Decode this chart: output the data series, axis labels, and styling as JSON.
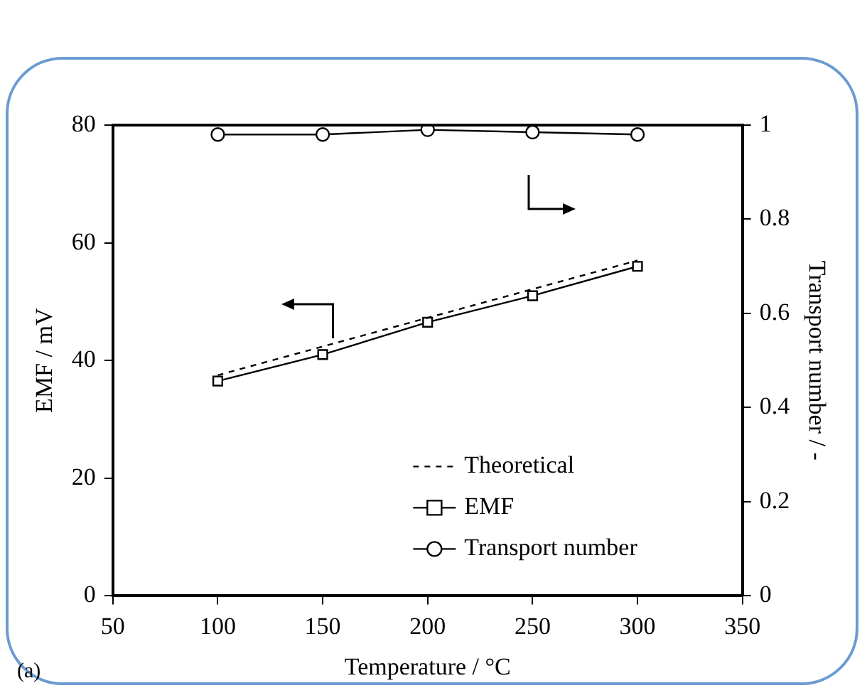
{
  "chart_data": {
    "type": "line",
    "xlabel": "Temperature / °C",
    "ylabel": "EMF / mV",
    "y2label": "Transport number / -",
    "annotations": [
      "(a)"
    ],
    "xlim": [
      50,
      350
    ],
    "xticks": [
      50,
      100,
      150,
      200,
      250,
      300,
      350
    ],
    "ylim": [
      0,
      80
    ],
    "yticks": [
      0,
      20,
      40,
      60,
      80
    ],
    "y2lim": [
      0,
      1
    ],
    "y2ticks": [
      0,
      0.2,
      0.4,
      0.6,
      0.8,
      1
    ],
    "grid": false,
    "legend": "bottom right",
    "series": [
      {
        "name": "Theoretical",
        "color": "#000000",
        "x": [
          100,
          300
        ],
        "values": [
          37.5,
          57
        ],
        "line_style": "dashed",
        "marker": "none"
      },
      {
        "name": "EMF",
        "color": "#000000",
        "x": [
          100,
          150,
          200,
          250,
          300
        ],
        "values": [
          36.5,
          41,
          46.5,
          51,
          56
        ],
        "line_style": "solid",
        "marker": "square"
      },
      {
        "name": "Transport number",
        "color": "#000000",
        "x": [
          100,
          150,
          200,
          250,
          300
        ],
        "values": [
          0.98,
          0.98,
          0.99,
          0.985,
          0.98
        ],
        "axis": "y2",
        "line_style": "solid",
        "marker": "circle"
      }
    ]
  }
}
